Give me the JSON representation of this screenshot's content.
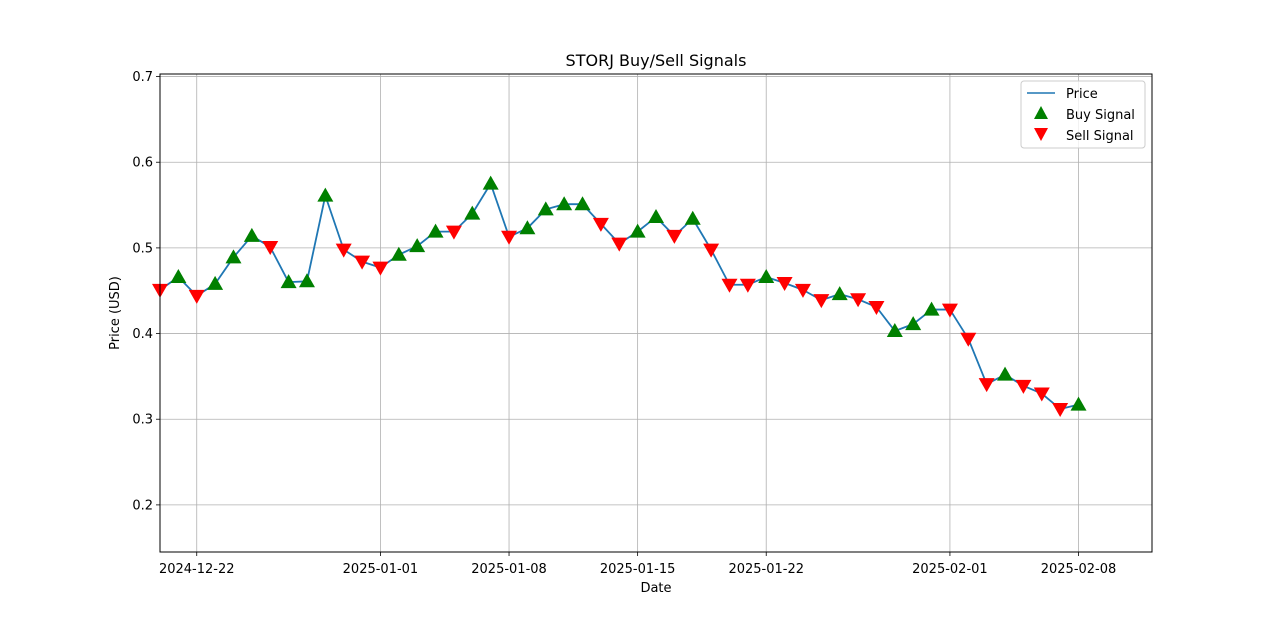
{
  "chart_data": {
    "type": "line",
    "title": "STORJ Buy/Sell Signals",
    "xlabel": "Date",
    "ylabel": "Price (USD)",
    "x_start": "2024-12-20",
    "x_range": [
      "2024-12-20",
      "2025-02-12"
    ],
    "xticks": [
      "2024-12-22",
      "2025-01-01",
      "2025-01-08",
      "2025-01-15",
      "2025-01-22",
      "2025-02-01",
      "2025-02-08"
    ],
    "ylim": [
      0.145,
      0.703
    ],
    "yticks": [
      "0.2",
      "0.3",
      "0.4",
      "0.5",
      "0.6",
      "0.7"
    ],
    "grid": true,
    "legend_position": "top-right",
    "legend": [
      "Price",
      "Buy Signal",
      "Sell Signal"
    ],
    "colors": {
      "price": "#1f77b4",
      "buy": "#008000",
      "sell": "#ff0000",
      "grid": "#b0b0b0"
    },
    "dates": [
      "2024-12-20",
      "2024-12-21",
      "2024-12-22",
      "2024-12-23",
      "2024-12-24",
      "2024-12-25",
      "2024-12-26",
      "2024-12-27",
      "2024-12-28",
      "2024-12-29",
      "2024-12-30",
      "2024-12-31",
      "2025-01-01",
      "2025-01-02",
      "2025-01-03",
      "2025-01-04",
      "2025-01-05",
      "2025-01-06",
      "2025-01-07",
      "2025-01-08",
      "2025-01-09",
      "2025-01-10",
      "2025-01-11",
      "2025-01-12",
      "2025-01-13",
      "2025-01-14",
      "2025-01-15",
      "2025-01-16",
      "2025-01-17",
      "2025-01-18",
      "2025-01-19",
      "2025-01-20",
      "2025-01-21",
      "2025-01-22",
      "2025-01-23",
      "2025-01-24",
      "2025-01-25",
      "2025-01-26",
      "2025-01-27",
      "2025-01-28",
      "2025-01-29",
      "2025-01-30",
      "2025-01-31",
      "2025-02-01",
      "2025-02-02",
      "2025-02-03",
      "2025-02-04",
      "2025-02-05",
      "2025-02-06",
      "2025-02-07",
      "2025-02-08"
    ],
    "price": [
      0.451,
      0.466,
      0.444,
      0.458,
      0.489,
      0.514,
      0.501,
      0.46,
      0.461,
      0.561,
      0.498,
      0.484,
      0.477,
      0.492,
      0.502,
      0.519,
      0.519,
      0.54,
      0.575,
      0.513,
      0.523,
      0.545,
      0.551,
      0.551,
      0.528,
      0.505,
      0.519,
      0.536,
      0.514,
      0.534,
      0.498,
      0.457,
      0.457,
      0.466,
      0.459,
      0.451,
      0.439,
      0.446,
      0.44,
      0.431,
      0.403,
      0.411,
      0.428,
      0.428,
      0.394,
      0.341,
      0.352,
      0.339,
      0.33,
      0.312,
      0.317
    ],
    "signals": [
      "sell",
      "buy",
      "sell",
      "buy",
      "buy",
      "buy",
      "sell",
      "buy",
      "buy",
      "buy",
      "sell",
      "sell",
      "sell",
      "buy",
      "buy",
      "buy",
      "sell",
      "buy",
      "buy",
      "sell",
      "buy",
      "buy",
      "buy",
      "buy",
      "sell",
      "sell",
      "buy",
      "buy",
      "sell",
      "buy",
      "sell",
      "sell",
      "sell",
      "buy",
      "sell",
      "sell",
      "sell",
      "buy",
      "sell",
      "sell",
      "buy",
      "buy",
      "buy",
      "sell",
      "sell",
      "sell",
      "buy",
      "sell",
      "sell",
      "sell",
      "buy"
    ]
  }
}
